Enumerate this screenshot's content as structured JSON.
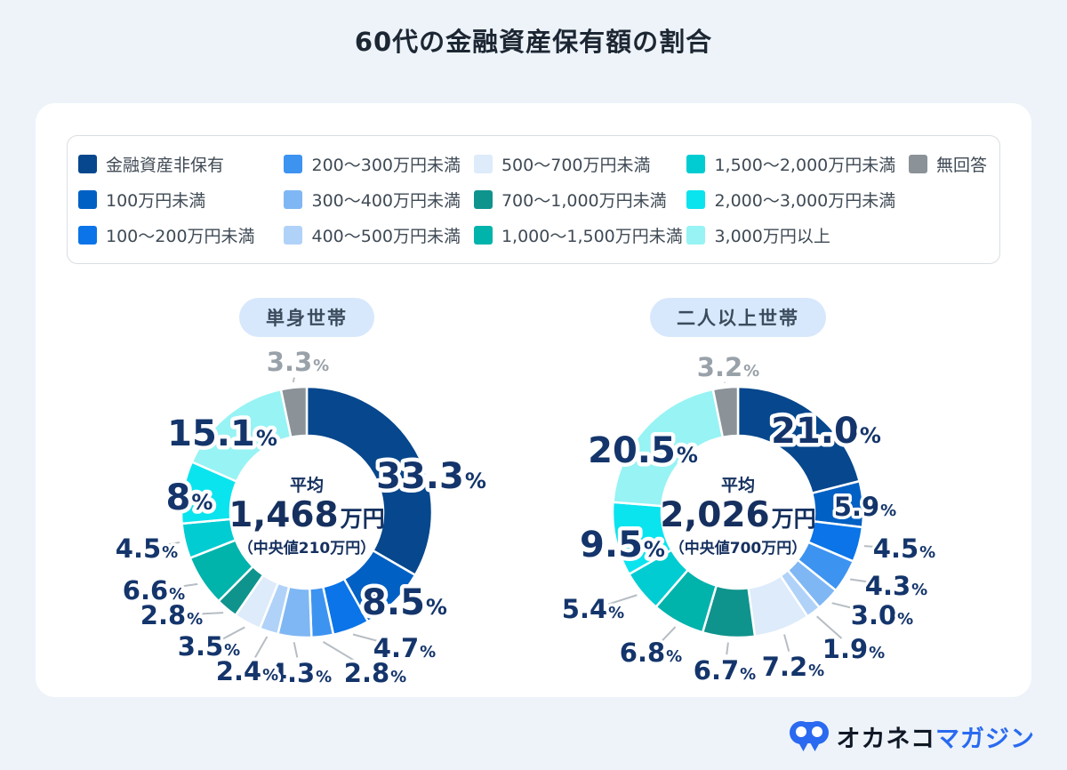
{
  "page": {
    "title": "60代の金融資産保有額の割合"
  },
  "legend": {
    "items": [
      {
        "label": "金融資産非保有",
        "color": "#06478d"
      },
      {
        "label": "100万円未満",
        "color": "#0060c4"
      },
      {
        "label": "100〜200万円未満",
        "color": "#0a74e8"
      },
      {
        "label": "200〜300万円未満",
        "color": "#3d93f0"
      },
      {
        "label": "300〜400万円未満",
        "color": "#7fb7f4"
      },
      {
        "label": "400〜500万円未満",
        "color": "#b0d2f8"
      },
      {
        "label": "500〜700万円未満",
        "color": "#ddebfa"
      },
      {
        "label": "700〜1,000万円未満",
        "color": "#0f938d"
      },
      {
        "label": "1,000〜1,500万円未満",
        "color": "#00b3ab"
      },
      {
        "label": "1,500〜2,000万円未満",
        "color": "#00ccd2"
      },
      {
        "label": "2,000〜3,000万円未満",
        "color": "#0ae4ee"
      },
      {
        "label": "3,000万円以上",
        "color": "#97f3f4"
      },
      {
        "label": "無回答",
        "color": "#8b9298"
      }
    ]
  },
  "chart_data": {
    "type": "pie",
    "subtype": "donut",
    "title": "60代の金融資産保有額の割合",
    "legend_position": "top",
    "percent_suffix": "%",
    "categories": [
      "金融資産非保有",
      "100万円未満",
      "100〜200万円未満",
      "200〜300万円未満",
      "300〜400万円未満",
      "400〜500万円未満",
      "500〜700万円未満",
      "700〜1,000万円未満",
      "1,000〜1,500万円未満",
      "1,500〜2,000万円未満",
      "2,000〜3,000万円未満",
      "3,000万円以上",
      "無回答"
    ],
    "colors": [
      "#06478d",
      "#0060c4",
      "#0a74e8",
      "#3d93f0",
      "#7fb7f4",
      "#b0d2f8",
      "#ddebfa",
      "#0f938d",
      "#00b3ab",
      "#00ccd2",
      "#0ae4ee",
      "#97f3f4",
      "#8b9298"
    ],
    "charts": [
      {
        "name": "単身世帯",
        "badge": "単身世帯",
        "values": [
          33.3,
          8.5,
          4.7,
          2.8,
          4.3,
          2.4,
          3.5,
          2.8,
          6.6,
          4.5,
          8,
          15.1,
          3.3
        ],
        "display": [
          "33.3",
          "8.5",
          "4.7",
          "2.8",
          "4.3",
          "2.4",
          "3.5",
          "2.8",
          "6.6",
          "4.5",
          "8",
          "15.1",
          "3.3"
        ],
        "center": {
          "label": "平均",
          "value": "1,468",
          "unit": "万円",
          "median": "（中央値210万円）"
        }
      },
      {
        "name": "二人以上世帯",
        "badge": "二人以上世帯",
        "values": [
          21.0,
          5.9,
          4.5,
          4.3,
          3.0,
          1.9,
          7.2,
          6.7,
          6.8,
          5.4,
          9.5,
          20.5,
          3.2
        ],
        "display": [
          "21.0",
          "5.9",
          "4.5",
          "4.3",
          "3.0",
          "1.9",
          "7.2",
          "6.7",
          "6.8",
          "5.4",
          "9.5",
          "20.5",
          "3.2"
        ],
        "center": {
          "label": "平均",
          "value": "2,026",
          "unit": "万円",
          "median": "（中央値700万円）"
        }
      }
    ]
  },
  "footer": {
    "brand": "オカネコ",
    "brand_suffix": "マガジン"
  },
  "style": {
    "label_color": "#14356b",
    "muted_label_color": "#99a1a9",
    "leader_line_color": "#b6bdc4",
    "brand_blue": "#2a6af0"
  }
}
